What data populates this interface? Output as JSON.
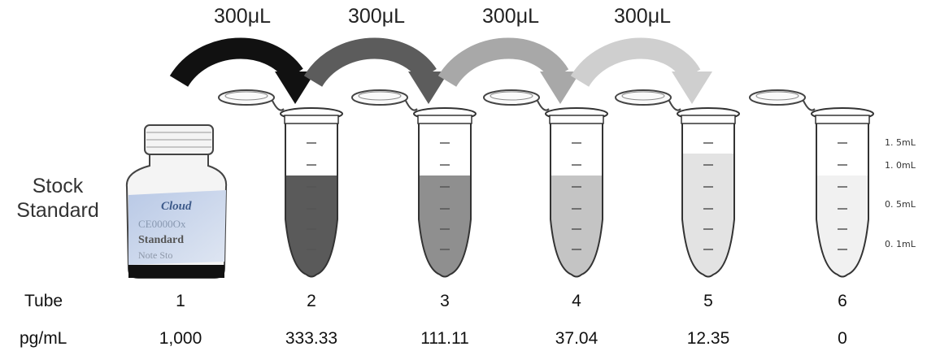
{
  "stock_label": {
    "line1": "Stock",
    "line2": "Standard"
  },
  "bottle_label": {
    "brand": "Cloud",
    "code": "CE0000Ox",
    "word": "Standard",
    "note": "Note   Sto"
  },
  "transfers": [
    {
      "label": "300μL",
      "color": "#111111"
    },
    {
      "label": "300μL",
      "color": "#5c5c5c"
    },
    {
      "label": "300μL",
      "color": "#a8a8a8"
    },
    {
      "label": "300μL",
      "color": "#cfcfcf"
    }
  ],
  "scale": [
    "1. 5mL",
    "1. 0mL",
    "0. 5mL",
    "0. 1mL"
  ],
  "tube_fill": [
    {
      "level": 0.5,
      "color": "#5a5a5a"
    },
    {
      "level": 0.5,
      "color": "#8f8f8f"
    },
    {
      "level": 0.5,
      "color": "#c4c4c4"
    },
    {
      "level": 0.75,
      "color": "#e3e3e3"
    },
    {
      "level": 0.5,
      "color": "#f1f1f1"
    }
  ],
  "table": {
    "row1_label": "Tube",
    "row2_label": "pg/mL",
    "tubes": [
      "1",
      "2",
      "3",
      "4",
      "5",
      "6"
    ],
    "concentrations": [
      "1,000",
      "333.33",
      "111.11",
      "37.04",
      "12.35",
      "0"
    ]
  }
}
